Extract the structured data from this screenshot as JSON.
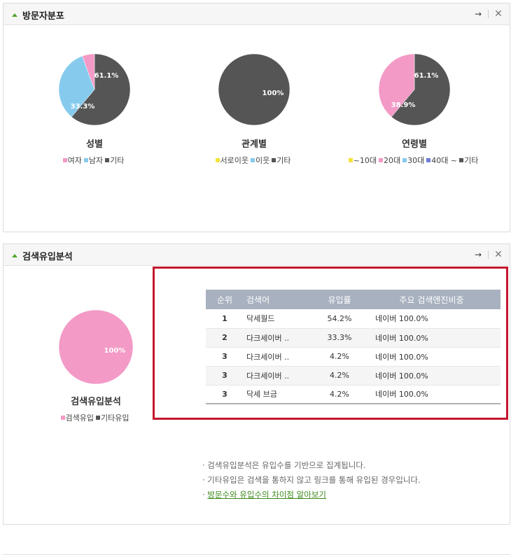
{
  "panel1": {
    "title": "방문자분포",
    "pies": [
      {
        "title": "성별",
        "label": "61.1%",
        "label2": "33.3%",
        "legend": [
          {
            "text": "여자",
            "color": "#f39ac6"
          },
          {
            "text": "남자",
            "color": "#86cbee"
          },
          {
            "text": "기타",
            "color": "#555555"
          }
        ]
      },
      {
        "title": "관계별",
        "label": "100%",
        "legend": [
          {
            "text": "서로이웃",
            "color": "#f4e33a"
          },
          {
            "text": "이웃",
            "color": "#86cbee"
          },
          {
            "text": "기타",
            "color": "#555555"
          }
        ]
      },
      {
        "title": "연령별",
        "label": "61.1%",
        "label2": "38.9%",
        "legend": [
          {
            "text": "~10대",
            "color": "#f4e33a"
          },
          {
            "text": "20대",
            "color": "#f39ac6"
          },
          {
            "text": "30대",
            "color": "#86cbee"
          },
          {
            "text": "40대 ~",
            "color": "#6d7dd8"
          },
          {
            "text": "기타",
            "color": "#555555"
          }
        ]
      }
    ]
  },
  "panel2": {
    "title": "검색유입분석",
    "pie": {
      "title": "검색유입분석",
      "label": "100%",
      "legend": [
        {
          "text": "검색유입",
          "color": "#f39ac6"
        },
        {
          "text": "기타유입",
          "color": "#555555"
        }
      ]
    },
    "table": {
      "headers": [
        "순위",
        "검색어",
        "유입률",
        "주요 검색엔진비중"
      ],
      "rows": [
        {
          "rank": "1",
          "keyword": "닥세월드",
          "rate": "54.2%",
          "engine": "네이버 100.0%"
        },
        {
          "rank": "2",
          "keyword": "다크세이버 ..",
          "rate": "33.3%",
          "engine": "네이버 100.0%"
        },
        {
          "rank": "3",
          "keyword": "다크세이버 ..",
          "rate": "4.2%",
          "engine": "네이버 100.0%"
        },
        {
          "rank": "3",
          "keyword": "다크세이버 ..",
          "rate": "4.2%",
          "engine": "네이버 100.0%"
        },
        {
          "rank": "3",
          "keyword": "닥세 브금",
          "rate": "4.2%",
          "engine": "네이버 100.0%"
        }
      ]
    },
    "notes": [
      "· 검색유입분석은 유입수를 기반으로 집계됩니다.",
      "· 기타유입은 검색을 통하지 않고 링크를 통해 유입된 경우입니다."
    ],
    "link": "방문수와 유입수의 차이점 알아보기"
  },
  "icons": {
    "arrow": "→",
    "close": "✕"
  },
  "chart_data": [
    {
      "type": "pie",
      "title": "성별",
      "categories": [
        "여자",
        "남자",
        "기타"
      ],
      "values": [
        5.6,
        33.3,
        61.1
      ]
    },
    {
      "type": "pie",
      "title": "관계별",
      "categories": [
        "서로이웃",
        "이웃",
        "기타"
      ],
      "values": [
        0,
        0,
        100
      ]
    },
    {
      "type": "pie",
      "title": "연령별",
      "categories": [
        "~10대",
        "20대",
        "30대",
        "40대 ~",
        "기타"
      ],
      "values": [
        0,
        38.9,
        0,
        0,
        61.1
      ]
    },
    {
      "type": "pie",
      "title": "검색유입분석",
      "categories": [
        "검색유입",
        "기타유입"
      ],
      "values": [
        100,
        0
      ]
    },
    {
      "type": "table",
      "headers": [
        "순위",
        "검색어",
        "유입률",
        "주요 검색엔진비중"
      ],
      "rows": [
        [
          "1",
          "닥세월드",
          "54.2%",
          "네이버 100.0%"
        ],
        [
          "2",
          "다크세이버 ..",
          "33.3%",
          "네이버 100.0%"
        ],
        [
          "3",
          "다크세이버 ..",
          "4.2%",
          "네이버 100.0%"
        ],
        [
          "3",
          "다크세이버 ..",
          "4.2%",
          "네이버 100.0%"
        ],
        [
          "3",
          "닥세 브금",
          "4.2%",
          "네이버 100.0%"
        ]
      ]
    }
  ]
}
